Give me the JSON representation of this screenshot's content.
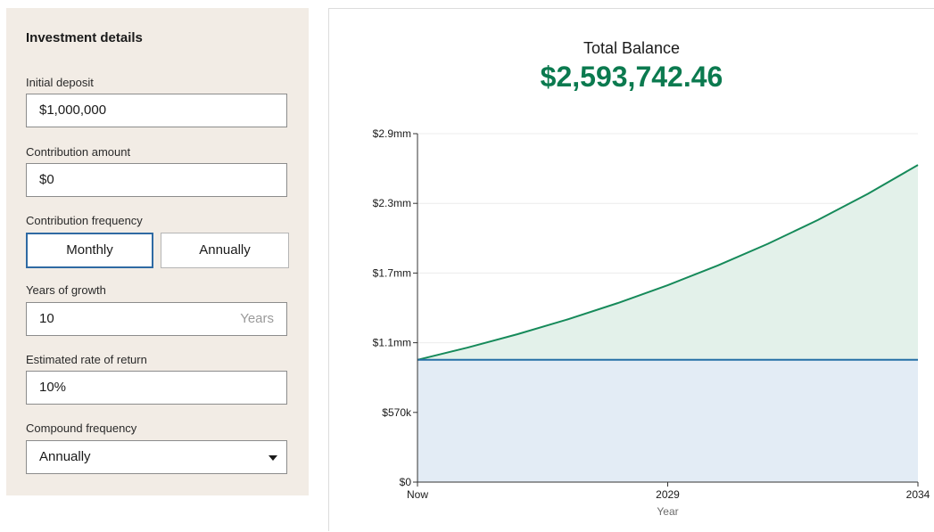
{
  "form": {
    "title": "Investment details",
    "initial_deposit": {
      "label": "Initial deposit",
      "value": "$1,000,000"
    },
    "contribution_amount": {
      "label": "Contribution amount",
      "value": "$0"
    },
    "contribution_frequency": {
      "label": "Contribution frequency",
      "options": [
        "Monthly",
        "Annually"
      ],
      "selected": "Monthly"
    },
    "years_of_growth": {
      "label": "Years of growth",
      "value": "10",
      "suffix": "Years"
    },
    "rate_of_return": {
      "label": "Estimated rate of return",
      "value": "10%"
    },
    "compound_frequency": {
      "label": "Compound frequency",
      "value": "Annually"
    }
  },
  "summary": {
    "label": "Total Balance",
    "value": "$2,593,742.46"
  },
  "colors": {
    "growth_line": "#168a5a",
    "growth_fill": "#e3f1ea",
    "principal_line": "#2470a6",
    "principal_fill": "#e3ecf5",
    "accent": "#0b7a4f",
    "panel_bg": "#f2ece5"
  },
  "chart_data": {
    "type": "area",
    "xlabel": "Year",
    "ylabel": "",
    "x": [
      0,
      1,
      2,
      3,
      4,
      5,
      6,
      7,
      8,
      9,
      10
    ],
    "x_tick_labels": [
      {
        "x": 0,
        "label": "Now"
      },
      {
        "x": 5,
        "label": "2029"
      },
      {
        "x": 10,
        "label": "2034"
      }
    ],
    "y_ticks": [
      {
        "value": 0,
        "label": "$0"
      },
      {
        "value": 570000,
        "label": "$570k"
      },
      {
        "value": 1140000,
        "label": "$1.1mm"
      },
      {
        "value": 1710000,
        "label": "$1.7mm"
      },
      {
        "value": 2280000,
        "label": "$2.3mm"
      },
      {
        "value": 2850000,
        "label": "$2.9mm"
      }
    ],
    "ylim": [
      0,
      2850000
    ],
    "grid": true,
    "series": [
      {
        "key": "total",
        "values": [
          1000000,
          1100000,
          1210000,
          1331000,
          1464100,
          1610510,
          1771561,
          1948717,
          2143589,
          2357948,
          2593742
        ]
      },
      {
        "key": "principal",
        "values": [
          1000000,
          1000000,
          1000000,
          1000000,
          1000000,
          1000000,
          1000000,
          1000000,
          1000000,
          1000000,
          1000000
        ]
      }
    ]
  }
}
